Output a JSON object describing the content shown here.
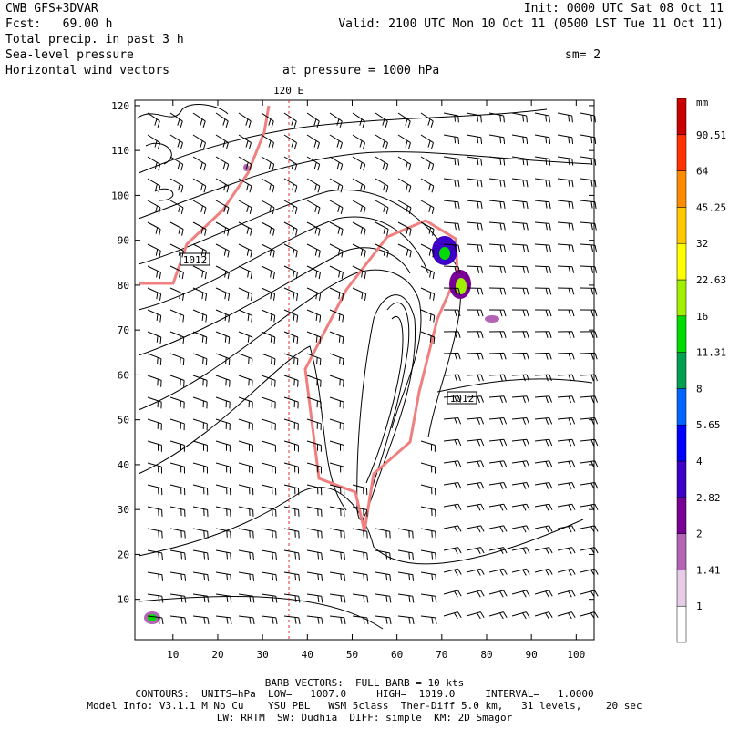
{
  "header": {
    "left": [
      "CWB GFS+3DVAR",
      "Fcst:   69.00 h",
      "Total precip. in past 3 h",
      "Sea-level pressure",
      "Horizontal wind vectors"
    ],
    "right": [
      "Init: 0000 UTC Sat 08 Oct 11",
      "Valid: 2100 UTC Mon 10 Oct 11 (0500 LST Tue 11 Oct 11)"
    ],
    "sm": "sm= 2",
    "pressure": "at pressure = 1000 hPa"
  },
  "map": {
    "meridian_label": "120 E",
    "xlim": [
      1.5,
      104
    ],
    "ylim": [
      1,
      121.2
    ],
    "xticks": [
      10,
      20,
      30,
      40,
      50,
      60,
      70,
      80,
      90,
      100
    ],
    "yticks": [
      10,
      20,
      30,
      40,
      50,
      60,
      70,
      80,
      90,
      100,
      110,
      120
    ],
    "contour_labels": [
      "1012",
      "1012"
    ]
  },
  "colorbar": {
    "unit": "mm",
    "levels": [
      1,
      1.41,
      2,
      2.82,
      4,
      5.65,
      8,
      11.31,
      16,
      22.63,
      32,
      45.25,
      64,
      90.51
    ],
    "colors": [
      "#ffffff",
      "#e6cce6",
      "#b464b4",
      "#780096",
      "#3c00c8",
      "#0000ff",
      "#0064ff",
      "#00a050",
      "#00dc00",
      "#a0f000",
      "#ffff00",
      "#ffc800",
      "#ff8c00",
      "#ff3200",
      "#c80000"
    ]
  },
  "footer": [
    "BARB VECTORS:  FULL BARB = 10 kts",
    "CONTOURS:  UNITS=hPa  LOW=   1007.0     HIGH=  1019.0     INTERVAL=   1.0000",
    "Model Info: V3.1.1 M No Cu    YSU PBL   WSM 5class  Ther-Diff 5.0 km,   31 levels,    20 sec",
    "LW: RRTM  SW: Dudhia  DIFF: simple  KM: 2D Smagor"
  ]
}
